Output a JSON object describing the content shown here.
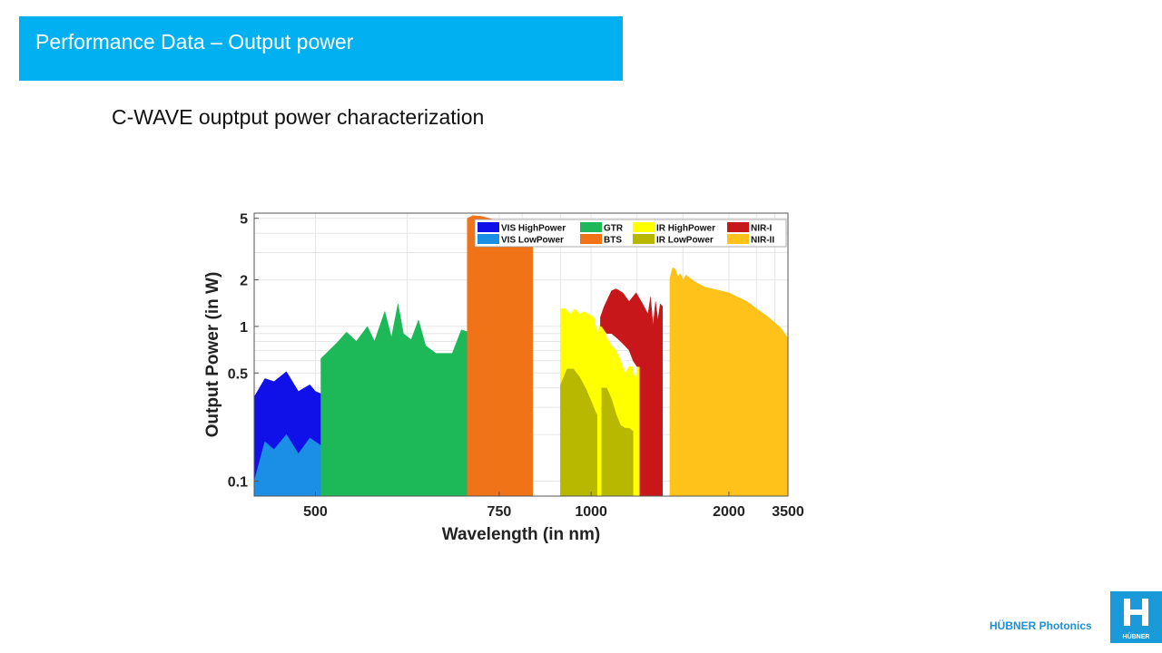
{
  "header": {
    "title": "Performance Data – Output power"
  },
  "subtitle": "C-WAVE ouptput power characterization",
  "brand": {
    "name": "HÜBNER Photonics",
    "logo_text": "HÜBNER"
  },
  "chart_data": {
    "type": "area",
    "xlabel": "Wavelength (in nm)",
    "ylabel": "Output Power (in W)",
    "xscale": "reciprocal",
    "yscale": "log",
    "xlim": [
      450,
      3500
    ],
    "ylim": [
      0.08,
      5.4
    ],
    "xticks": [
      500,
      750,
      1000,
      2000,
      3500
    ],
    "xtick_labels": [
      "500",
      "750",
      "1000",
      "2000",
      "3500"
    ],
    "yticks": [
      0.1,
      0.5,
      1,
      2,
      5
    ],
    "ytick_labels": [
      "0.1",
      "0.5",
      "1",
      "2",
      "5"
    ],
    "grid": true,
    "legend_position": "top-right",
    "series": [
      {
        "name": "VIS HighPower",
        "color": "#1010e8",
        "points": [
          [
            450,
            0.35
          ],
          [
            458,
            0.46
          ],
          [
            465,
            0.44
          ],
          [
            475,
            0.51
          ],
          [
            485,
            0.38
          ],
          [
            495,
            0.42
          ],
          [
            500,
            0.38
          ],
          [
            508,
            0.36
          ],
          [
            515,
            0.42
          ],
          [
            523,
            0.48
          ],
          [
            523,
            0.08
          ],
          [
            450,
            0.08
          ]
        ]
      },
      {
        "name": "VIS HighPower",
        "color": "#1010e8",
        "points": [
          [
            540,
            0.48
          ],
          [
            550,
            0.5
          ],
          [
            560,
            0.5
          ],
          [
            565,
            0.38
          ],
          [
            575,
            0.47
          ],
          [
            585,
            0.42
          ],
          [
            595,
            0.4
          ],
          [
            605,
            0.36
          ],
          [
            615,
            0.45
          ],
          [
            620,
            0.42
          ],
          [
            620,
            0.08
          ],
          [
            540,
            0.08
          ]
        ]
      },
      {
        "name": "VIS LowPower",
        "color": "#1b8fe6",
        "points": [
          [
            450,
            0.1
          ],
          [
            458,
            0.18
          ],
          [
            465,
            0.16
          ],
          [
            475,
            0.2
          ],
          [
            485,
            0.15
          ],
          [
            495,
            0.19
          ],
          [
            505,
            0.17
          ],
          [
            515,
            0.2
          ],
          [
            523,
            0.13
          ],
          [
            523,
            0.08
          ],
          [
            450,
            0.08
          ]
        ]
      },
      {
        "name": "VIS LowPower",
        "color": "#1b8fe6",
        "points": [
          [
            540,
            0.09
          ],
          [
            550,
            0.12
          ],
          [
            560,
            0.1
          ],
          [
            575,
            0.14
          ],
          [
            585,
            0.1
          ],
          [
            595,
            0.12
          ],
          [
            605,
            0.1
          ],
          [
            615,
            0.13
          ],
          [
            620,
            0.1
          ],
          [
            620,
            0.08
          ],
          [
            540,
            0.08
          ]
        ]
      },
      {
        "name": "GTR",
        "color": "#1db858",
        "points": [
          [
            505,
            0.62
          ],
          [
            520,
            0.78
          ],
          [
            530,
            0.92
          ],
          [
            540,
            0.8
          ],
          [
            552,
            1.0
          ],
          [
            560,
            0.8
          ],
          [
            572,
            1.25
          ],
          [
            580,
            0.85
          ],
          [
            588,
            1.4
          ],
          [
            595,
            0.9
          ],
          [
            605,
            0.82
          ],
          [
            615,
            1.1
          ],
          [
            625,
            0.75
          ],
          [
            640,
            0.67
          ],
          [
            665,
            0.67
          ],
          [
            680,
            0.95
          ],
          [
            692,
            0.92
          ],
          [
            705,
            0.5
          ],
          [
            720,
            0.08
          ],
          [
            530,
            0.08
          ],
          [
            505,
            0.08
          ]
        ]
      },
      {
        "name": "BTS",
        "color": "#f07318",
        "points": [
          [
            690,
            5.0
          ],
          [
            700,
            5.2
          ],
          [
            715,
            5.15
          ],
          [
            730,
            5.0
          ],
          [
            755,
            4.7
          ],
          [
            780,
            4.4
          ],
          [
            800,
            3.9
          ],
          [
            825,
            3.3
          ],
          [
            825,
            0.08
          ],
          [
            690,
            0.08
          ]
        ]
      },
      {
        "name": "IR HighPower",
        "color": "#ffff00",
        "points": [
          [
            900,
            1.3
          ],
          [
            915,
            1.3
          ],
          [
            930,
            1.2
          ],
          [
            945,
            1.3
          ],
          [
            960,
            1.2
          ],
          [
            975,
            1.25
          ],
          [
            990,
            1.2
          ],
          [
            1010,
            1.15
          ],
          [
            1022,
            0.9
          ],
          [
            1040,
            1.1
          ],
          [
            1060,
            0.85
          ],
          [
            1080,
            0.75
          ],
          [
            1100,
            0.7
          ],
          [
            1120,
            0.6
          ],
          [
            1140,
            0.5
          ],
          [
            1160,
            0.55
          ],
          [
            1175,
            0.55
          ],
          [
            1190,
            0.45
          ],
          [
            1205,
            0.55
          ],
          [
            1215,
            0.55
          ],
          [
            1215,
            0.08
          ],
          [
            900,
            0.08
          ]
        ]
      },
      {
        "name": "IR LowPower",
        "color": "#b8b800",
        "points": [
          [
            900,
            0.42
          ],
          [
            920,
            0.53
          ],
          [
            940,
            0.53
          ],
          [
            960,
            0.47
          ],
          [
            980,
            0.4
          ],
          [
            1000,
            0.33
          ],
          [
            1020,
            0.27
          ],
          [
            1022,
            0.27
          ],
          [
            1022,
            0.08
          ],
          [
            900,
            0.08
          ]
        ]
      },
      {
        "name": "IR LowPower",
        "color": "#b8b800",
        "points": [
          [
            1040,
            0.4
          ],
          [
            1060,
            0.4
          ],
          [
            1080,
            0.34
          ],
          [
            1100,
            0.27
          ],
          [
            1120,
            0.23
          ],
          [
            1140,
            0.22
          ],
          [
            1160,
            0.22
          ],
          [
            1180,
            0.21
          ],
          [
            1180,
            0.08
          ],
          [
            1040,
            0.08
          ]
        ]
      },
      {
        "name": "NIR-I",
        "color": "#c8171b",
        "points": [
          [
            1035,
            1.15
          ],
          [
            1050,
            1.35
          ],
          [
            1080,
            1.7
          ],
          [
            1100,
            1.75
          ],
          [
            1130,
            1.65
          ],
          [
            1160,
            1.45
          ],
          [
            1195,
            1.65
          ],
          [
            1230,
            1.4
          ],
          [
            1260,
            1.2
          ],
          [
            1275,
            1.55
          ],
          [
            1290,
            1.0
          ],
          [
            1305,
            1.45
          ],
          [
            1320,
            1.1
          ],
          [
            1335,
            1.4
          ],
          [
            1350,
            1.35
          ],
          [
            1350,
            0.08
          ],
          [
            1215,
            0.08
          ],
          [
            1215,
            0.55
          ],
          [
            1200,
            0.55
          ],
          [
            1180,
            0.6
          ],
          [
            1160,
            0.7
          ],
          [
            1140,
            0.75
          ],
          [
            1120,
            0.8
          ],
          [
            1100,
            0.85
          ],
          [
            1080,
            0.9
          ],
          [
            1060,
            0.9
          ],
          [
            1040,
            1.0
          ],
          [
            1035,
            1.0
          ]
        ]
      },
      {
        "name": "NIR-II",
        "color": "#ffc21a",
        "points": [
          [
            1400,
            2.05
          ],
          [
            1420,
            2.4
          ],
          [
            1440,
            2.35
          ],
          [
            1460,
            2.1
          ],
          [
            1480,
            2.2
          ],
          [
            1500,
            2.0
          ],
          [
            1525,
            2.15
          ],
          [
            1600,
            1.95
          ],
          [
            1700,
            1.8
          ],
          [
            2000,
            1.65
          ],
          [
            2300,
            1.45
          ],
          [
            2800,
            1.15
          ],
          [
            3200,
            0.98
          ],
          [
            3500,
            0.84
          ],
          [
            3500,
            0.08
          ],
          [
            1400,
            0.08
          ]
        ]
      }
    ],
    "legend": [
      {
        "label": "VIS HighPower",
        "color": "#1010e8"
      },
      {
        "label": "GTR",
        "color": "#1db858"
      },
      {
        "label": "IR HighPower",
        "color": "#ffff00"
      },
      {
        "label": "NIR-I",
        "color": "#c8171b"
      },
      {
        "label": "VIS LowPower",
        "color": "#1b8fe6"
      },
      {
        "label": "BTS",
        "color": "#f07318"
      },
      {
        "label": "IR LowPower",
        "color": "#b8b800"
      },
      {
        "label": "NIR-II",
        "color": "#ffc21a"
      }
    ]
  }
}
